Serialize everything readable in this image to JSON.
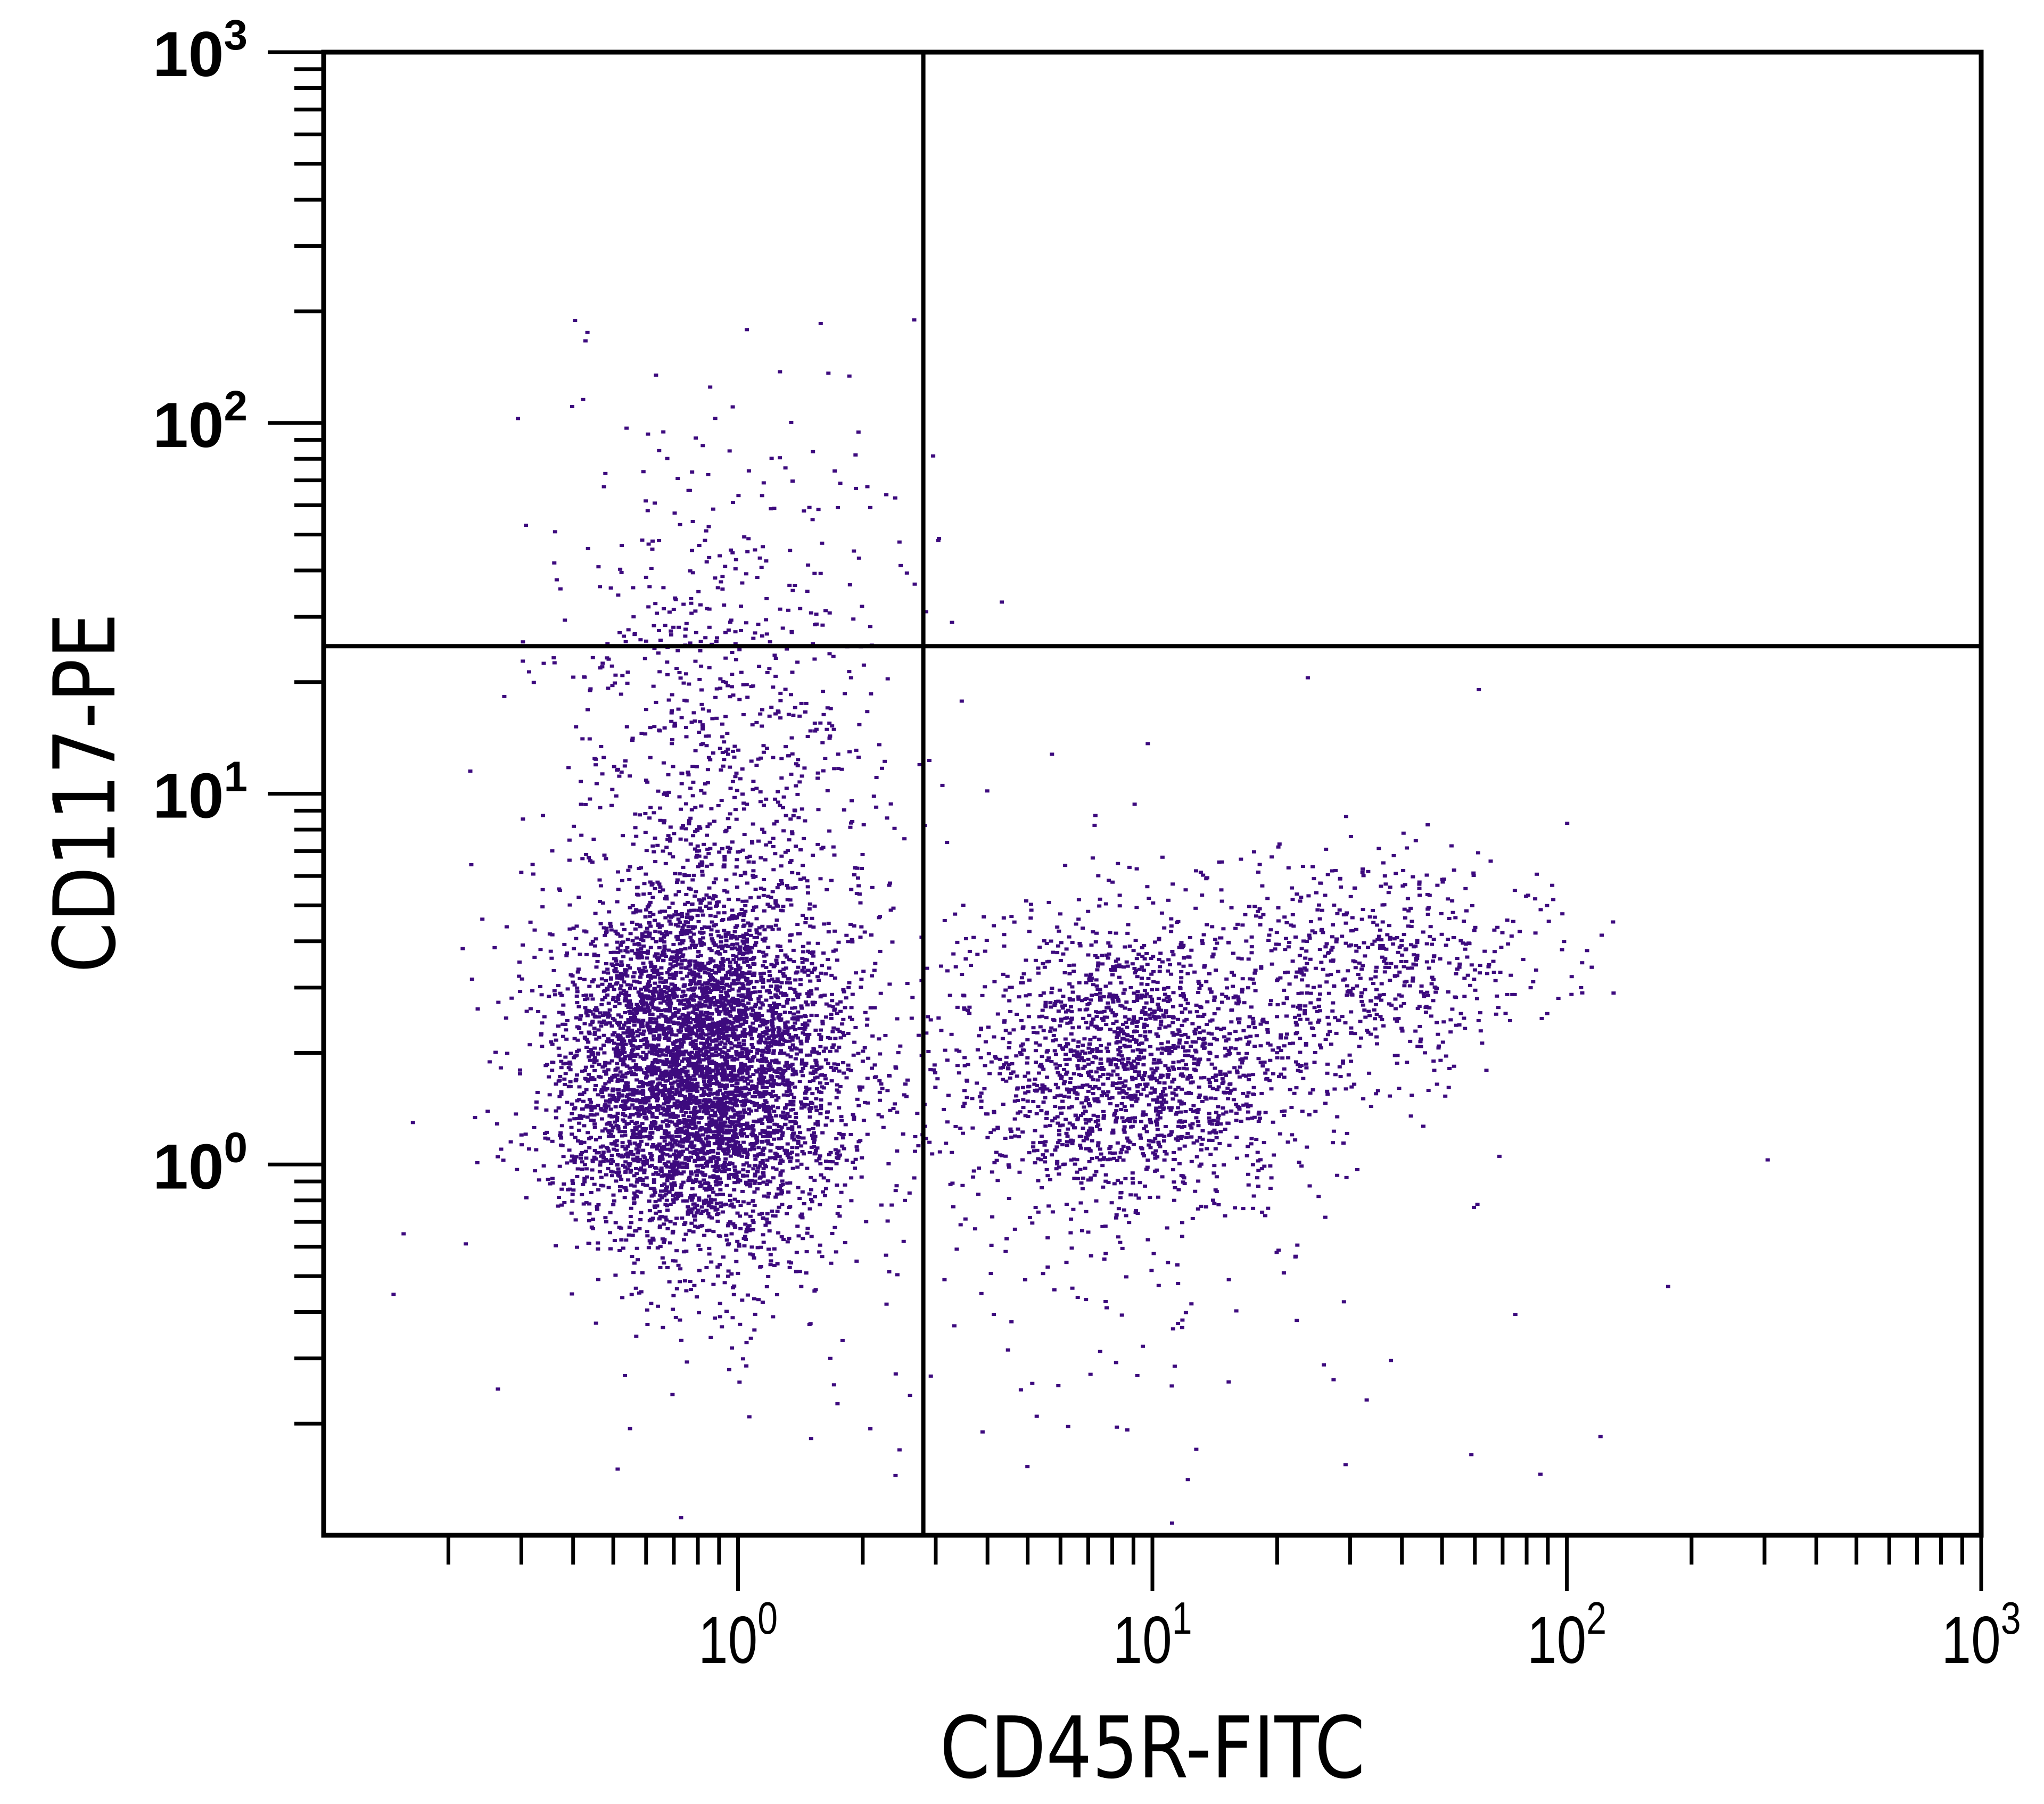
{
  "chart_data": {
    "type": "scatter",
    "title": "",
    "xlabel": "CD45R-FITC",
    "ylabel": "CD117-PE",
    "xscale": "log",
    "yscale": "log",
    "xlim": [
      0.1,
      1000
    ],
    "ylim": [
      0.1,
      1000
    ],
    "x_ticks": [
      {
        "value": 1,
        "base": "10",
        "exp": "0"
      },
      {
        "value": 10,
        "base": "10",
        "exp": "1"
      },
      {
        "value": 100,
        "base": "10",
        "exp": "2"
      },
      {
        "value": 1000,
        "base": "10",
        "exp": "3"
      }
    ],
    "y_ticks": [
      {
        "value": 1,
        "base": "10",
        "exp": "0"
      },
      {
        "value": 10,
        "base": "10",
        "exp": "1"
      },
      {
        "value": 100,
        "base": "10",
        "exp": "2"
      },
      {
        "value": 1000,
        "base": "10",
        "exp": "3"
      }
    ],
    "grid": false,
    "point_color": "#3d0a7e",
    "quadrant_gates": {
      "x": 2.8,
      "y": 25
    },
    "populations": [
      {
        "center": [
          0.8,
          1.8
        ],
        "spread_decades": [
          0.17,
          0.24
        ],
        "count": 5200
      },
      {
        "center": [
          0.9,
          12
        ],
        "spread_decades": [
          0.2,
          0.45
        ],
        "count": 900
      },
      {
        "center": [
          9,
          1.9
        ],
        "spread_decades": [
          0.2,
          0.2
        ],
        "count": 1800
      },
      {
        "center": [
          35,
          3.5
        ],
        "spread_decades": [
          0.2,
          0.15
        ],
        "count": 600
      },
      {
        "center": [
          4,
          1.2
        ],
        "spread_decades": [
          0.6,
          0.55
        ],
        "count": 350
      }
    ]
  }
}
